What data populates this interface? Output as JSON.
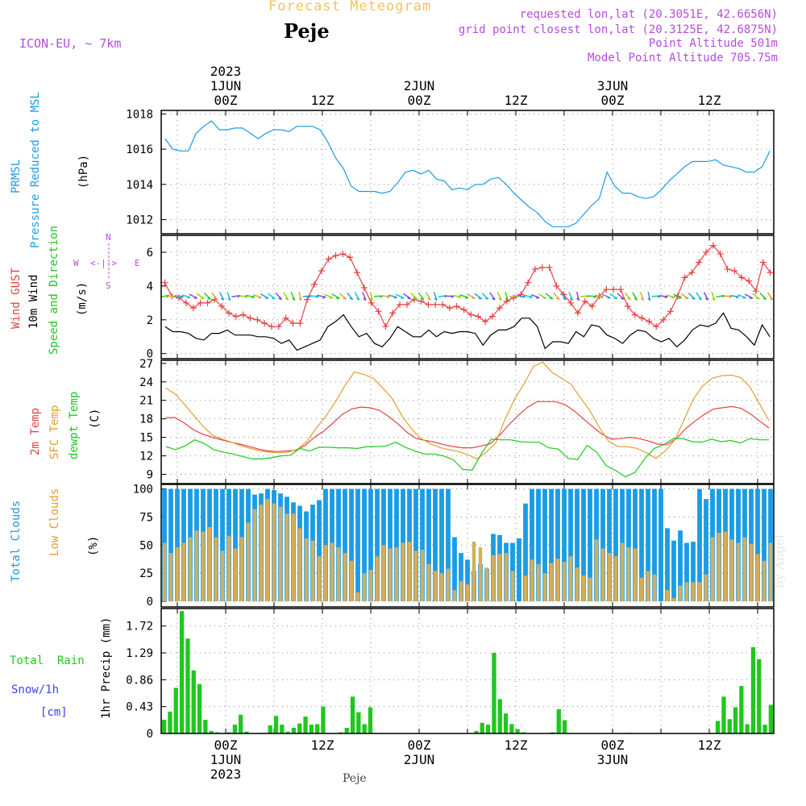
{
  "header": {
    "title": "Forecast Meteogram",
    "location": "Peje",
    "model": "ICON-EU, ~ 7km",
    "requested": "requested lon,lat (20.3051E, 42.6656N)",
    "gridpoint": "grid point closest lon,lat (20.3125E, 42.6875N)",
    "point_alt": "Point Altitude 501m",
    "model_alt": "Model Point Altitude 705.75m",
    "footer_location": "Peje",
    "watermark": "by Angel"
  },
  "colors": {
    "title": "#F4C35A",
    "purple": "#B44CE0",
    "blue": "#1A9CE6",
    "red": "#E84040",
    "orange": "#E0A030",
    "green": "#1EC81E",
    "snow": "#4040FF"
  },
  "time_axis": {
    "hours": 76,
    "top_labels": [
      {
        "hour": 8,
        "lines": [
          "2023",
          "1JUN",
          "00Z"
        ]
      },
      {
        "hour": 20,
        "lines": [
          "12Z"
        ]
      },
      {
        "hour": 32,
        "lines": [
          "2JUN",
          "00Z"
        ]
      },
      {
        "hour": 44,
        "lines": [
          "12Z"
        ]
      },
      {
        "hour": 56,
        "lines": [
          "3JUN",
          "00Z"
        ]
      },
      {
        "hour": 68,
        "lines": [
          "12Z"
        ]
      }
    ],
    "bottom_labels": [
      {
        "hour": 8,
        "lines": [
          "00Z",
          "1JUN",
          "2023"
        ]
      },
      {
        "hour": 20,
        "lines": [
          "12Z"
        ]
      },
      {
        "hour": 32,
        "lines": [
          "00Z",
          "2JUN"
        ]
      },
      {
        "hour": 44,
        "lines": [
          "12Z"
        ]
      },
      {
        "hour": 56,
        "lines": [
          "00Z",
          "3JUN"
        ]
      },
      {
        "hour": 68,
        "lines": [
          "12Z"
        ]
      }
    ]
  },
  "panel_labels": {
    "pressure": {
      "a": "PRMSL",
      "b": "Pressure Reduced to MSL",
      "unit": "(hPa)"
    },
    "wind": {
      "a": "Wind GUST",
      "b": "10m Wind",
      "c": "Speed and Direction",
      "unit": "(m/s)",
      "compass_n": "N",
      "compass_s": "S",
      "compass_w": "W",
      "compass_e": "E",
      "compass_arrows": "<-|->"
    },
    "temp": {
      "a": "2m Temp",
      "b": "SFC Temp",
      "c": "dewpt Temp",
      "unit": "(C)"
    },
    "clouds": {
      "a": "Total Clouds",
      "b": "Low Clouds",
      "unit": "(%)"
    },
    "precip": {
      "a": "Total  Rain",
      "b": "Snow/1h",
      "c": "[cm]",
      "unit": "1hr Precip (mm)"
    }
  },
  "chart_data": [
    {
      "type": "line",
      "title": "PRMSL Pressure Reduced to MSL",
      "ylabel": "(hPa)",
      "ylim": [
        1011.2,
        1018.2
      ],
      "yticks": [
        1012,
        1014,
        1016,
        1018
      ],
      "series": [
        {
          "name": "PRMSL",
          "color": "#1A9CE6",
          "values": [
            1016.6,
            1016.0,
            1015.9,
            1015.9,
            1016.9,
            1017.3,
            1017.6,
            1017.1,
            1017.1,
            1017.2,
            1017.2,
            1016.9,
            1016.6,
            1016.9,
            1017.1,
            1017.1,
            1017.0,
            1017.3,
            1017.3,
            1017.3,
            1017.1,
            1016.4,
            1015.5,
            1014.9,
            1013.9,
            1013.6,
            1013.6,
            1013.6,
            1013.5,
            1013.6,
            1014.1,
            1014.7,
            1014.8,
            1014.6,
            1014.8,
            1014.3,
            1014.2,
            1013.7,
            1013.8,
            1013.7,
            1014.0,
            1014.0,
            1014.3,
            1014.4,
            1014.0,
            1013.5,
            1013.1,
            1012.7,
            1012.4,
            1011.9,
            1011.6,
            1011.6,
            1011.6,
            1011.8,
            1012.3,
            1012.8,
            1013.2,
            1014.7,
            1013.9,
            1013.5,
            1013.5,
            1013.3,
            1013.2,
            1013.3,
            1013.7,
            1014.2,
            1014.6,
            1015.0,
            1015.3,
            1015.3,
            1015.3,
            1015.4,
            1015.1,
            1015.0,
            1014.9,
            1014.7,
            1014.7,
            1015.0,
            1015.9
          ]
        }
      ]
    },
    {
      "type": "line",
      "title": "Wind GUST / 10m Wind Speed and Direction",
      "ylabel": "(m/s)",
      "ylim": [
        -0.3,
        7
      ],
      "yticks": [
        0,
        2,
        4,
        6
      ],
      "series": [
        {
          "name": "Wind GUST",
          "color": "#E84040",
          "marker": "+",
          "values": [
            4.2,
            3.4,
            3.3,
            3.0,
            2.7,
            3.0,
            3.0,
            3.2,
            2.8,
            2.4,
            2.2,
            2.3,
            2.1,
            2.0,
            1.8,
            1.6,
            1.6,
            2.1,
            1.8,
            1.8,
            3.2,
            4.1,
            4.9,
            5.6,
            5.8,
            5.9,
            5.7,
            4.8,
            3.9,
            3.0,
            2.5,
            1.6,
            2.4,
            2.9,
            2.9,
            3.2,
            3.1,
            2.9,
            2.9,
            2.9,
            2.7,
            2.8,
            2.6,
            2.3,
            2.2,
            1.9,
            2.2,
            2.7,
            3.1,
            3.3,
            3.5,
            4.2,
            5.0,
            5.1,
            5.1,
            4.0,
            3.5,
            3.0,
            2.4,
            3.1,
            2.8,
            3.4,
            3.8,
            3.8,
            3.8,
            2.8,
            2.3,
            2.1,
            1.9,
            1.6,
            2.0,
            2.5,
            3.4,
            4.5,
            4.8,
            5.4,
            6.0,
            6.4,
            5.9,
            5.0,
            4.9,
            4.5,
            4.3,
            3.7,
            5.4,
            4.8
          ]
        },
        {
          "name": "10m Wind",
          "color": "#000000",
          "values": [
            1.6,
            1.3,
            1.3,
            1.2,
            0.9,
            0.8,
            1.2,
            1.2,
            1.4,
            1.1,
            1.1,
            1.1,
            1.0,
            1.0,
            0.9,
            0.6,
            0.8,
            0.2,
            0.4,
            0.6,
            0.8,
            1.6,
            1.9,
            2.3,
            1.6,
            1.0,
            1.2,
            0.6,
            0.4,
            0.9,
            1.6,
            1.3,
            1.0,
            1.0,
            1.4,
            1.0,
            1.3,
            1.2,
            1.3,
            1.3,
            1.2,
            0.5,
            1.1,
            1.4,
            1.4,
            1.6,
            2.1,
            2.1,
            1.6,
            0.3,
            0.7,
            0.7,
            0.6,
            1.3,
            1.0,
            1.7,
            1.6,
            1.1,
            0.9,
            0.6,
            1.1,
            1.4,
            1.3,
            0.9,
            0.7,
            0.9,
            0.4,
            0.8,
            1.4,
            1.7,
            1.6,
            1.8,
            2.4,
            1.5,
            1.4,
            1.0,
            0.5,
            1.7,
            1.0
          ]
        }
      ]
    },
    {
      "type": "line",
      "title": "2m Temp / SFC Temp / dewpt Temp",
      "ylabel": "(C)",
      "ylim": [
        7.5,
        27.5
      ],
      "yticks": [
        9,
        12,
        15,
        18,
        21,
        24,
        27
      ],
      "series": [
        {
          "name": "2m Temp",
          "color": "#E84040",
          "values": [
            18.2,
            18.2,
            17.3,
            16.2,
            15.5,
            15.0,
            14.6,
            14.2,
            13.9,
            13.5,
            13.1,
            12.8,
            12.7,
            12.8,
            12.9,
            13.7,
            15.0,
            16.0,
            17.3,
            18.7,
            19.6,
            19.9,
            19.8,
            19.4,
            18.4,
            17.2,
            15.8,
            14.8,
            14.5,
            14.2,
            13.8,
            13.5,
            13.3,
            13.3,
            13.6,
            14.0,
            15.4,
            17.1,
            18.6,
            19.9,
            20.8,
            20.8,
            20.8,
            20.3,
            19.3,
            18.0,
            16.7,
            15.5,
            14.7,
            14.8,
            15.0,
            14.8,
            14.4,
            13.9,
            13.8,
            14.8,
            16.4,
            17.6,
            18.7,
            19.6,
            19.8,
            20.0,
            19.7,
            18.8,
            17.6,
            16.5
          ]
        },
        {
          "name": "SFC Temp",
          "color": "#E0A030",
          "values": [
            23.0,
            22.0,
            20.3,
            18.5,
            16.7,
            15.3,
            14.7,
            14.2,
            13.6,
            13.2,
            12.8,
            12.6,
            12.5,
            12.6,
            13.1,
            14.4,
            16.6,
            18.5,
            20.8,
            23.4,
            25.6,
            25.2,
            24.6,
            23.0,
            21.3,
            18.6,
            16.5,
            14.9,
            14.0,
            13.4,
            13.0,
            12.7,
            12.2,
            11.5,
            12.6,
            14.1,
            18.0,
            21.2,
            23.7,
            26.5,
            27.2,
            25.5,
            24.6,
            23.6,
            21.4,
            19.3,
            16.6,
            14.3,
            13.5,
            13.5,
            13.2,
            12.5,
            11.6,
            12.8,
            14.6,
            17.9,
            21.3,
            23.4,
            24.6,
            25.0,
            25.1,
            24.7,
            23.1,
            20.4,
            17.7
          ]
        },
        {
          "name": "dewpt Temp",
          "color": "#1EC81E",
          "values": [
            13.5,
            13.0,
            13.6,
            14.6,
            14.0,
            13.0,
            12.6,
            12.3,
            11.9,
            11.5,
            11.5,
            11.7,
            12.0,
            12.1,
            13.2,
            12.8,
            13.4,
            13.4,
            13.3,
            13.3,
            13.2,
            13.5,
            13.5,
            13.6,
            14.2,
            13.4,
            12.8,
            12.3,
            12.3,
            12.0,
            11.4,
            9.8,
            9.7,
            12.5,
            14.7,
            14.6,
            14.6,
            14.3,
            14.2,
            14.2,
            13.3,
            13.1,
            11.6,
            11.4,
            13.7,
            12.6,
            10.4,
            9.6,
            8.6,
            9.3,
            11.5,
            13.2,
            13.8,
            14.8,
            14.8,
            14.3,
            14.2,
            14.7,
            14.3,
            14.5,
            14.1,
            14.8,
            14.6,
            14.6
          ]
        }
      ]
    },
    {
      "type": "bar",
      "title": "Total Clouds / Low Clouds",
      "ylabel": "(%)",
      "ylim": [
        -5,
        104
      ],
      "yticks": [
        0,
        25,
        50,
        75,
        100
      ],
      "series": [
        {
          "name": "Total Clouds",
          "color": "#1A9CE6",
          "values": [
            100,
            100,
            100,
            100,
            100,
            100,
            100,
            100,
            100,
            100,
            100,
            100,
            100,
            100,
            95,
            96,
            100,
            99,
            96,
            93,
            88,
            85,
            80,
            86,
            90,
            100,
            100,
            100,
            100,
            100,
            100,
            100,
            100,
            100,
            100,
            100,
            100,
            100,
            100,
            100,
            100,
            100,
            100,
            100,
            100,
            57,
            43,
            37,
            27,
            33,
            29,
            60,
            59,
            52,
            52,
            56,
            87,
            100,
            100,
            100,
            100,
            100,
            100,
            100,
            100,
            100,
            100,
            100,
            100,
            100,
            100,
            100,
            100,
            100,
            100,
            100,
            100,
            100,
            65,
            54,
            63,
            52,
            53,
            100,
            91,
            100,
            100,
            100,
            100,
            100,
            100,
            100,
            100,
            100,
            100
          ]
        },
        {
          "name": "Low Clouds",
          "color": "#D4AE5A",
          "values": [
            52,
            43,
            48,
            52,
            57,
            63,
            62,
            66,
            57,
            45,
            58,
            47,
            57,
            70,
            82,
            86,
            91,
            87,
            84,
            78,
            78,
            65,
            56,
            54,
            40,
            50,
            52,
            48,
            43,
            36,
            8,
            25,
            28,
            40,
            50,
            47,
            48,
            52,
            53,
            45,
            46,
            33,
            27,
            25,
            29,
            10,
            18,
            15,
            53,
            48,
            30,
            41,
            42,
            43,
            27,
            0,
            23,
            37,
            33,
            25,
            34,
            38,
            35,
            40,
            30,
            23,
            21,
            55,
            47,
            43,
            40,
            52,
            48,
            47,
            21,
            27,
            24,
            0,
            10,
            3,
            14,
            17,
            17,
            17,
            24,
            57,
            61,
            62,
            55,
            52,
            57,
            51,
            42,
            36,
            52
          ]
        }
      ]
    },
    {
      "type": "bar",
      "title": "1hr Precip",
      "ylabel": "1hr Precip (mm)",
      "ylim": [
        0,
        2.0
      ],
      "yticks": [
        0,
        0.43,
        0.86,
        1.29,
        1.72
      ],
      "series": [
        {
          "name": "Total Rain",
          "color": "#1EC81E",
          "values": [
            0.22,
            0.35,
            0.73,
            1.96,
            1.52,
            1.01,
            0.79,
            0.22,
            0.04,
            0.02,
            0.01,
            0.02,
            0.14,
            0.3,
            0.03,
            0.0,
            0.0,
            0.01,
            0.13,
            0.28,
            0.14,
            0.03,
            0.09,
            0.16,
            0.27,
            0.14,
            0.15,
            0.43,
            0.0,
            0.0,
            0.02,
            0.09,
            0.59,
            0.34,
            0.15,
            0.42,
            0.0,
            0.0,
            0.0,
            0.0,
            0.0,
            0.0,
            0.0,
            0.0,
            0.0,
            0.0,
            0.0,
            0.0,
            0.0,
            0.0,
            0.0,
            0.0,
            0.0,
            0.04,
            0.17,
            0.14,
            1.29,
            0.55,
            0.32,
            0.15,
            0.07,
            0.02,
            0.0,
            0.0,
            0.0,
            0.0,
            0.02,
            0.39,
            0.21,
            0.0,
            0.0,
            0.0,
            0.0,
            0.0,
            0.0,
            0.0,
            0.0,
            0.0,
            0.0,
            0.01,
            0.0,
            0.0,
            0.0,
            0.0,
            0.0,
            0.0,
            0.0,
            0.0,
            0.0,
            0.0,
            0.0,
            0.0,
            0.0,
            0.0,
            0.2,
            0.59,
            0.23,
            0.42,
            0.76,
            0.15,
            1.38,
            1.19,
            0.14,
            0.46
          ]
        }
      ]
    }
  ]
}
